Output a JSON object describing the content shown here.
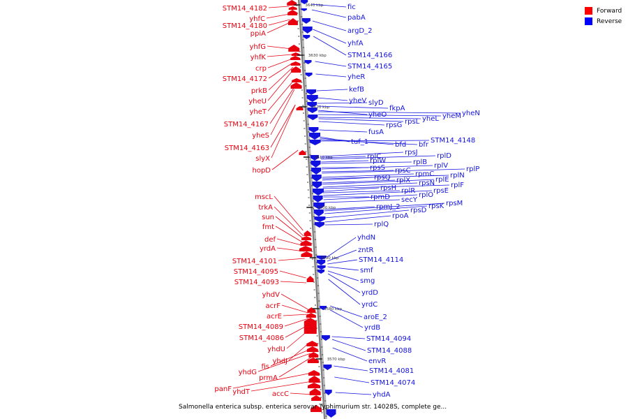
{
  "caption": "Salmonella enterica subsp. enterica serovar Typhimurium str. 14028S, complete ge...",
  "legend": [
    {
      "label": "Forward",
      "color": "#ff0000"
    },
    {
      "label": "Reverse",
      "color": "#0000ff"
    }
  ],
  "colors": {
    "forward": "#e8000f",
    "reverse": "#1212e0",
    "axis": "#888888"
  },
  "scale_labels": [
    "3640 kbp",
    "3630 kbp",
    "3620 kbp",
    "3610 kbp",
    "3600 kbp",
    "3590 kbp",
    "3580 kbp",
    "3570 kbp"
  ],
  "forward_labels": [
    "STM14_4182",
    "yhfC",
    "STM14_4180",
    "ppiA",
    "yhfG",
    "yhfK",
    "crp",
    "STM14_4172",
    "prkB",
    "yheU",
    "yheT",
    "STM14_4167",
    "yheS",
    "STM14_4163",
    "slyX",
    "hopD",
    "mscL",
    "trkA",
    "sun",
    "fmt",
    "def",
    "yrdA",
    "STM14_4101",
    "STM14_4095",
    "STM14_4093",
    "yhdV",
    "acrF",
    "acrE",
    "STM14_4089",
    "STM14_4086",
    "yhdU",
    "yhdJ",
    "fis",
    "yhdG",
    "prmA",
    "panF",
    "yhdT",
    "accC"
  ],
  "reverse_labels": [
    "fic",
    "pabA",
    "argD_2",
    "yhfA",
    "STM14_4166",
    "STM14_4165",
    "yheR",
    "kefB",
    "yheV",
    "slyD",
    "fkpA",
    "yheO",
    "yheN",
    "yheM",
    "yheL",
    "rpsL",
    "rpsG",
    "fusA",
    "tuf_1",
    "bfd",
    "bfr",
    "STM14_4148",
    "rpsJ",
    "rplC",
    "rplD",
    "rplW",
    "rplB",
    "rpsS",
    "rplV",
    "rpsC",
    "rplP",
    "rpmC",
    "rplN",
    "rpsQ",
    "rplX",
    "rplE",
    "rpsN",
    "rplF",
    "rpsH",
    "rplR",
    "rpsE",
    "rpmD",
    "rplO",
    "secY",
    "rpmJ_2",
    "rpsM",
    "rpsK",
    "rpsD",
    "rpoA",
    "rplQ",
    "yhdN",
    "zntR",
    "STM14_4114",
    "smf",
    "smg",
    "yrdD",
    "yrdC",
    "aroE_2",
    "yrdB",
    "STM14_4094",
    "STM14_4088",
    "envR",
    "STM14_4081",
    "STM14_4074",
    "yhdA"
  ]
}
